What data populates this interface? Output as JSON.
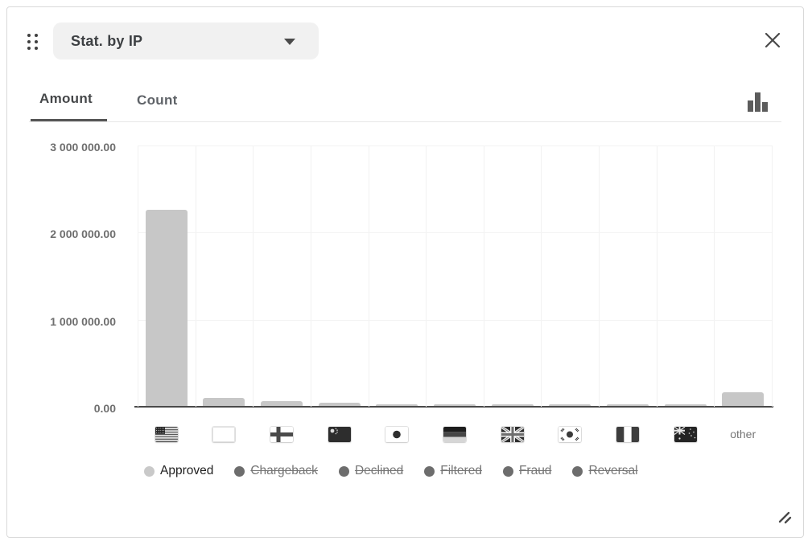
{
  "header": {
    "title": "Stat. by IP",
    "icons": {
      "drag_handle": "drag-handle-icon",
      "dropdown_caret": "chevron-down-icon",
      "close": "close-icon",
      "chart_type": "bar-chart-icon",
      "resize": "resize-handle-icon"
    }
  },
  "tabs": {
    "items": [
      {
        "label": "Amount",
        "active": true
      },
      {
        "label": "Count",
        "active": false
      }
    ]
  },
  "colors": {
    "bar": "#c7c7c7",
    "legend_active_dot": "#c9c9c9",
    "legend_inactive_dot": "#6d6d6d",
    "baseline": "#4a4a4a",
    "grid": "#f1f1f1"
  },
  "chart_data": {
    "type": "bar",
    "title": "Stat. by IP",
    "active_series": "Approved",
    "categories": [
      "United States",
      "Unknown",
      "Finland",
      "China",
      "Japan",
      "Germany",
      "United Kingdom",
      "South Korea",
      "Nigeria",
      "Australia",
      "other"
    ],
    "category_codes": [
      "us",
      "unknown",
      "fi",
      "cn",
      "jp",
      "de",
      "gb",
      "kr",
      "ng",
      "au",
      "other"
    ],
    "values": [
      2250000,
      95000,
      55000,
      35000,
      18000,
      15000,
      12000,
      12000,
      10000,
      10000,
      160000
    ],
    "ylim": [
      0,
      3000000
    ],
    "yticks": [
      {
        "label": "3 000 000.00",
        "value": 3000000
      },
      {
        "label": "2 000 000.00",
        "value": 2000000
      },
      {
        "label": "1 000 000.00",
        "value": 1000000
      },
      {
        "label": "0.00",
        "value": 0
      }
    ],
    "grid": true,
    "legend_position": "bottom",
    "other_label": "other",
    "legend": [
      {
        "label": "Approved",
        "active": true
      },
      {
        "label": "Chargeback",
        "active": false
      },
      {
        "label": "Declined",
        "active": false
      },
      {
        "label": "Filtered",
        "active": false
      },
      {
        "label": "Fraud",
        "active": false
      },
      {
        "label": "Reversal",
        "active": false
      }
    ]
  }
}
